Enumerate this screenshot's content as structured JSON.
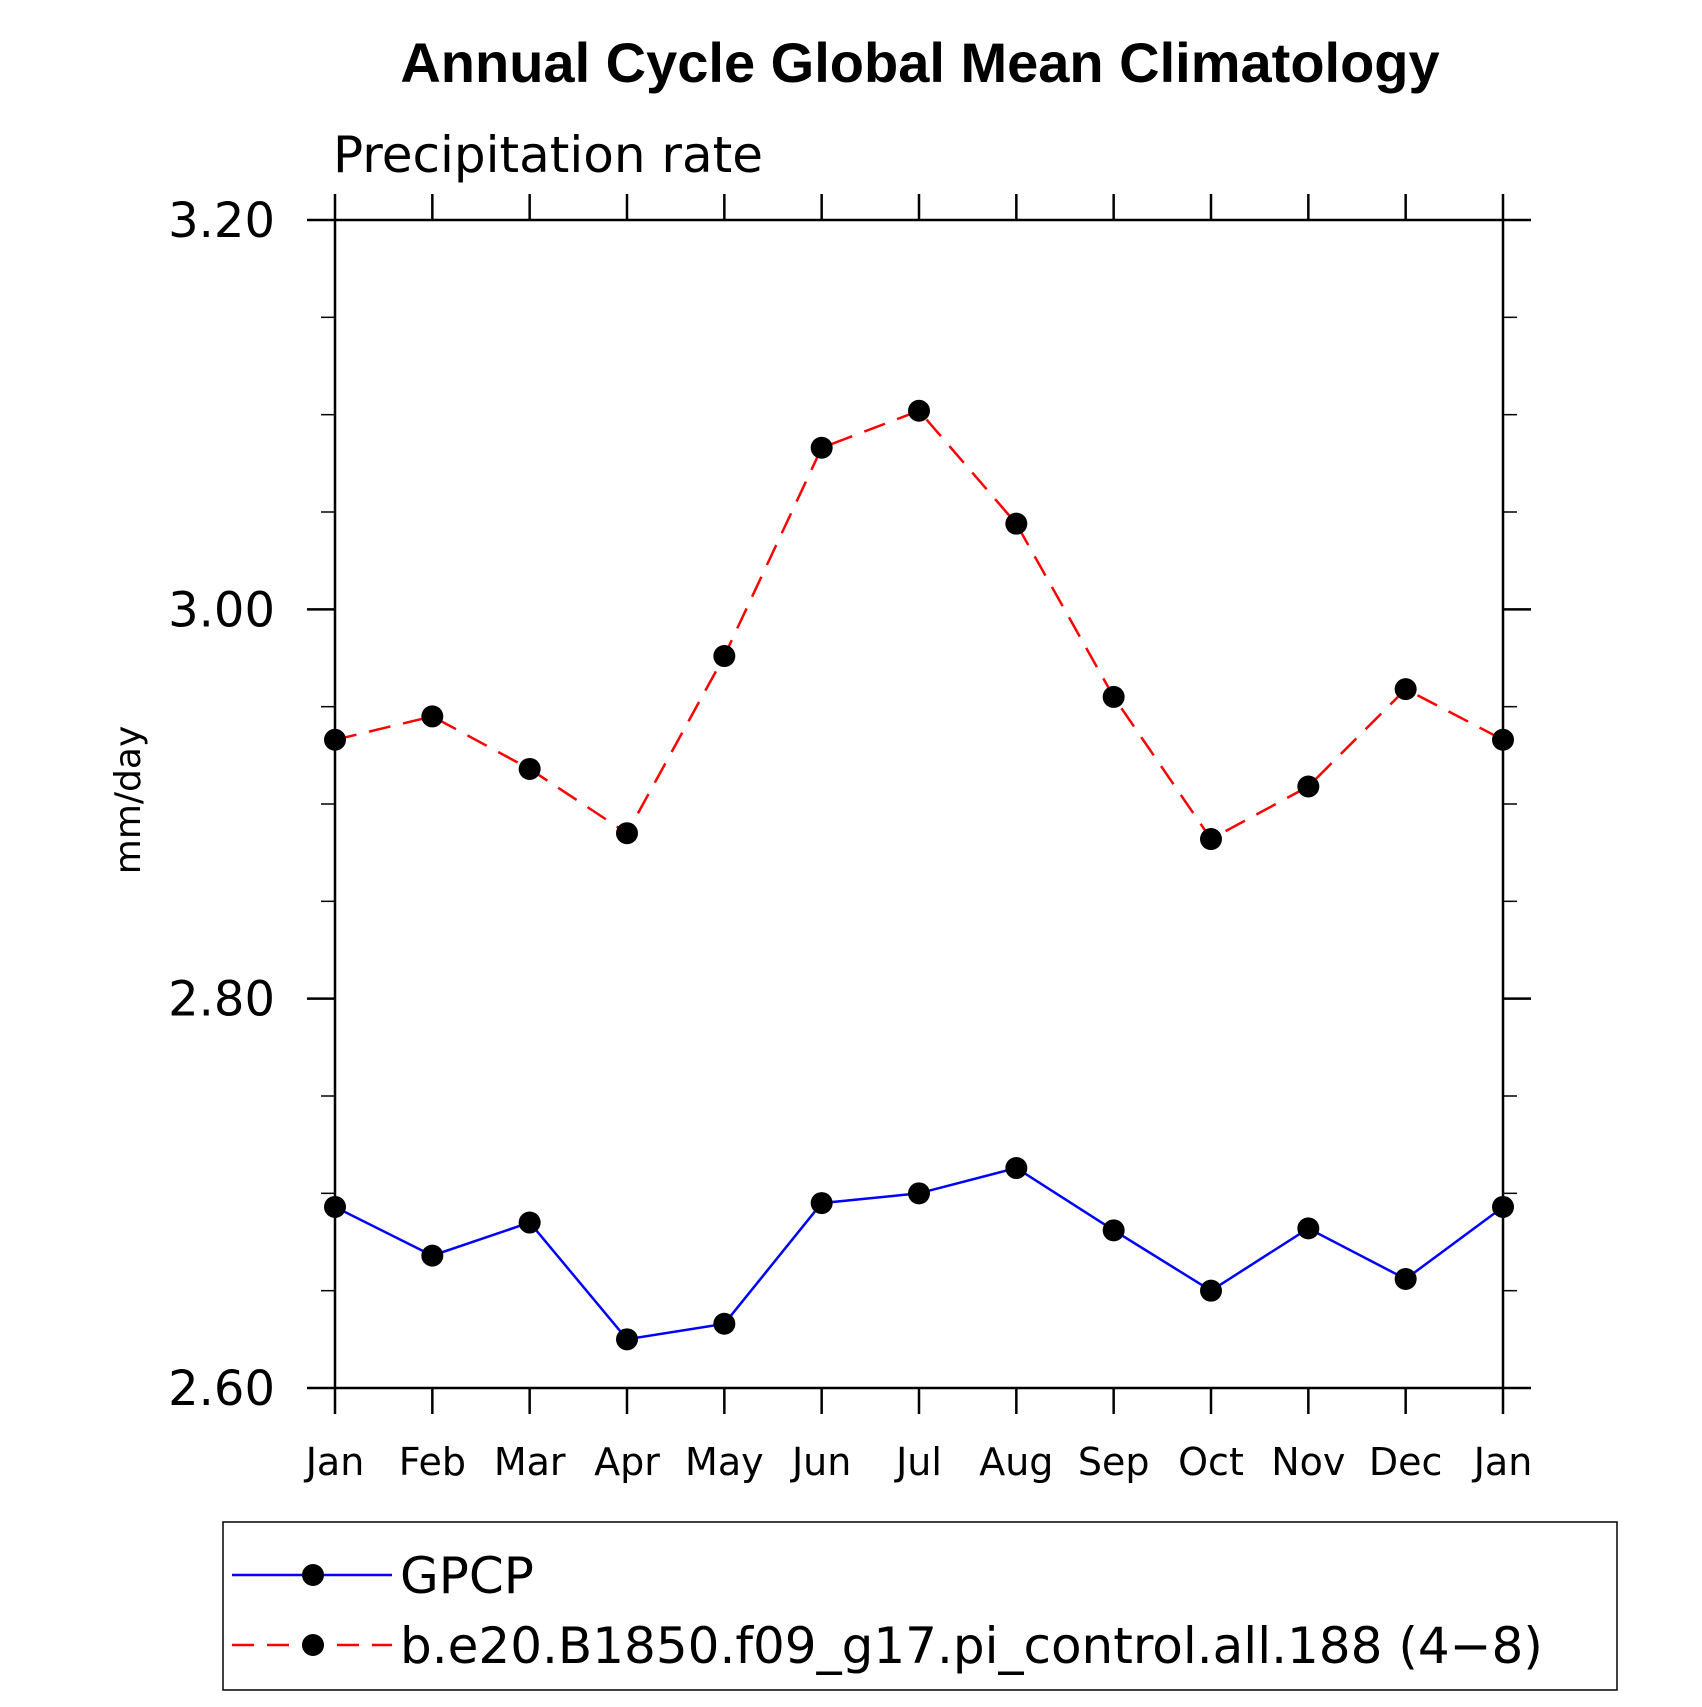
{
  "chart_data": {
    "type": "line",
    "title": "Annual Cycle Global Mean Climatology",
    "subtitle": "Precipitation rate",
    "ylabel": "mm/day",
    "xlabel": "",
    "categories": [
      "Jan",
      "Feb",
      "Mar",
      "Apr",
      "May",
      "Jun",
      "Jul",
      "Aug",
      "Sep",
      "Oct",
      "Nov",
      "Dec",
      "Jan"
    ],
    "ylim": [
      2.6,
      3.2
    ],
    "y_ticks": [
      "2.60",
      "2.80",
      "3.00",
      "3.20"
    ],
    "y_tick_values": [
      2.6,
      2.8,
      3.0,
      3.2
    ],
    "y_minor_step": 0.05,
    "grid": false,
    "legend_position": "bottom",
    "series": [
      {
        "name": "GPCP",
        "color": "#0000ff",
        "line_style": "solid",
        "marker": "filled-circle",
        "values": [
          2.693,
          2.668,
          2.685,
          2.625,
          2.633,
          2.695,
          2.7,
          2.713,
          2.681,
          2.65,
          2.682,
          2.656,
          2.693
        ]
      },
      {
        "name": "b.e20.B1850.f09_g17.pi_control.all.188 (4−8)",
        "color": "#ff0000",
        "line_style": "dashed",
        "marker": "filled-circle",
        "values": [
          2.933,
          2.945,
          2.918,
          2.885,
          2.976,
          3.083,
          3.102,
          3.044,
          2.955,
          2.882,
          2.909,
          2.959,
          2.933
        ]
      }
    ]
  }
}
